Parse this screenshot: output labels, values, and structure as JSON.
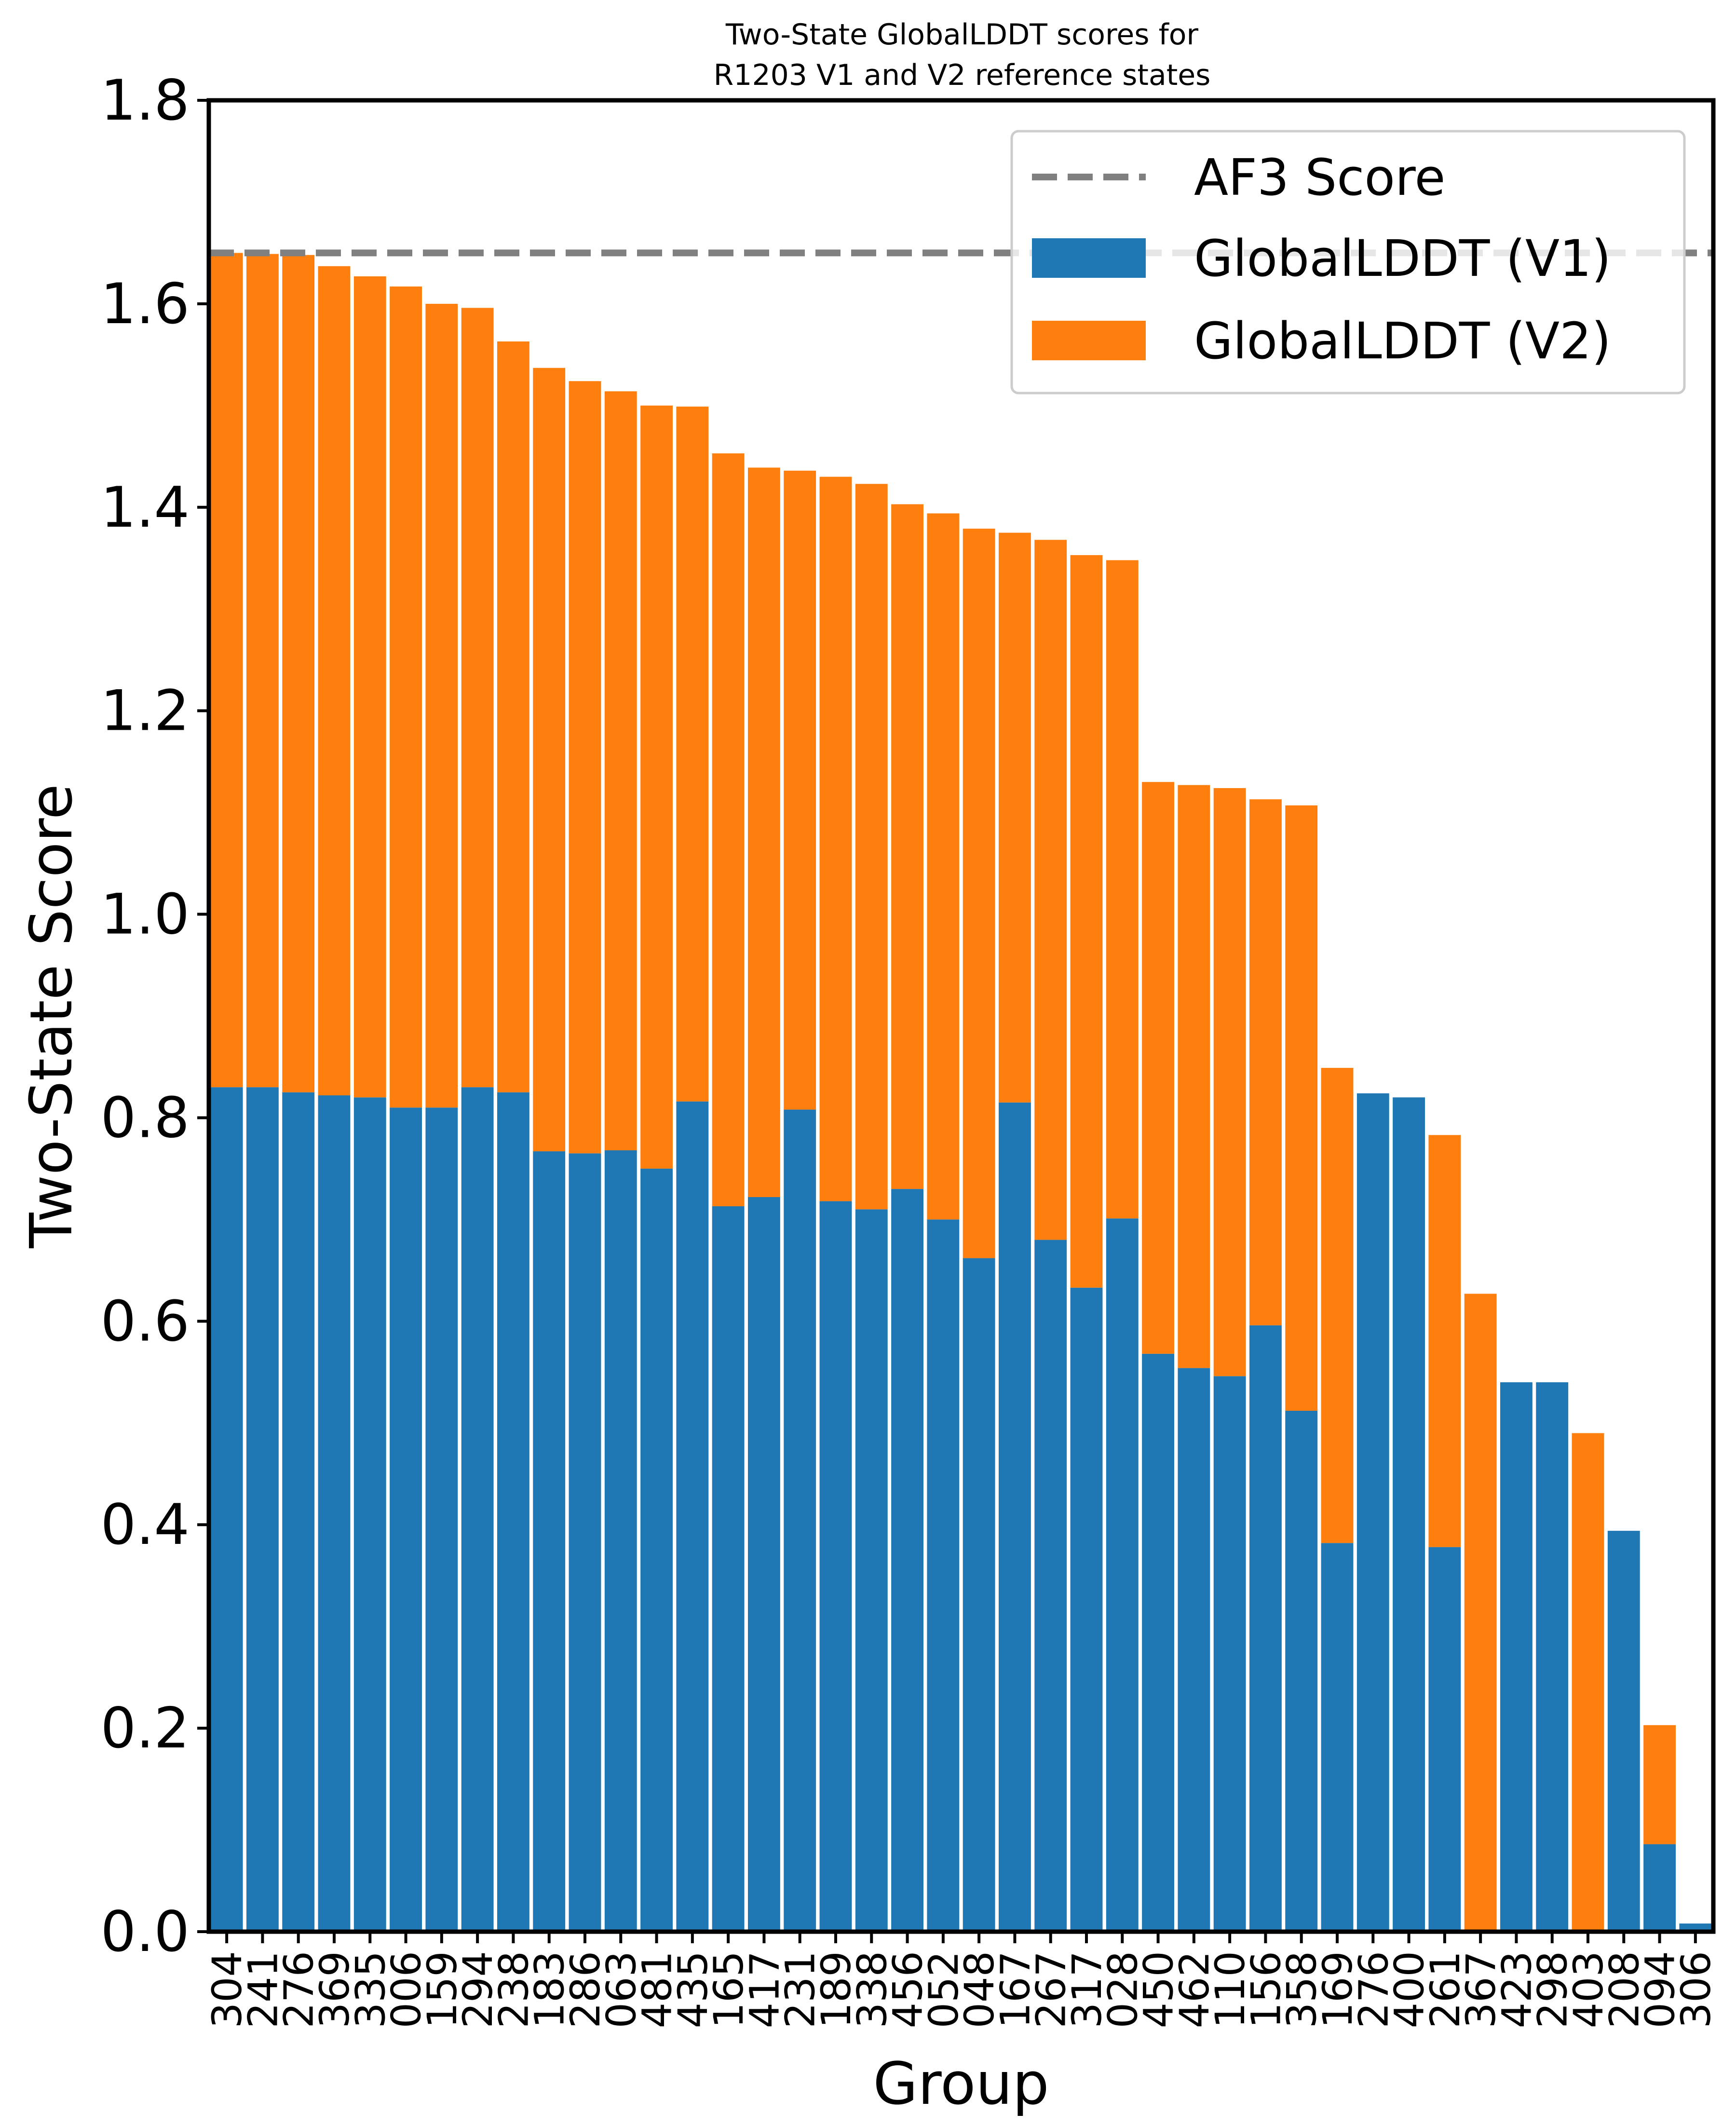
{
  "chart_data": {
    "type": "bar",
    "stacked": true,
    "title": [
      "Two-State GlobalLDDT scores for",
      "R1203 V1 and V2 reference states"
    ],
    "xlabel": "Group",
    "ylabel": "Two-State Score",
    "ylim": [
      0,
      1.8
    ],
    "yticks": [
      0.0,
      0.2,
      0.4,
      0.6,
      0.8,
      1.0,
      1.2,
      1.4,
      1.6,
      1.8
    ],
    "ytick_labels": [
      "0.0",
      "0.2",
      "0.4",
      "0.6",
      "0.8",
      "1.0",
      "1.2",
      "1.4",
      "1.6",
      "1.8"
    ],
    "grid": false,
    "legend_position": "top-right",
    "categories": [
      "304",
      "241",
      "276",
      "369",
      "335",
      "006",
      "159",
      "294",
      "238",
      "183",
      "286",
      "063",
      "481",
      "435",
      "165",
      "417",
      "231",
      "189",
      "338",
      "456",
      "052",
      "048",
      "167",
      "267",
      "317",
      "028",
      "450",
      "462",
      "110",
      "156",
      "358",
      "169",
      "276",
      "400",
      "261",
      "367",
      "423",
      "298",
      "403",
      "208",
      "094",
      "306"
    ],
    "series": [
      {
        "name": "GlobalLDDT (V1)",
        "color": "#1f77b4",
        "values": [
          0.83,
          0.83,
          0.825,
          0.822,
          0.82,
          0.81,
          0.81,
          0.83,
          0.825,
          0.767,
          0.765,
          0.768,
          0.75,
          0.816,
          0.713,
          0.722,
          0.808,
          0.718,
          0.71,
          0.73,
          0.7,
          0.662,
          0.815,
          0.68,
          0.633,
          0.701,
          0.568,
          0.554,
          0.546,
          0.596,
          0.512,
          0.382,
          0.824,
          0.82,
          0.378,
          0.0,
          0.54,
          0.54,
          0.0,
          0.394,
          0.086,
          0.008
        ]
      },
      {
        "name": "GlobalLDDT (V2)",
        "color": "#ff7f0e",
        "values": [
          0.82,
          0.819,
          0.823,
          0.815,
          0.807,
          0.807,
          0.79,
          0.766,
          0.738,
          0.77,
          0.759,
          0.746,
          0.75,
          0.683,
          0.74,
          0.717,
          0.628,
          0.712,
          0.713,
          0.673,
          0.694,
          0.717,
          0.56,
          0.688,
          0.72,
          0.647,
          0.562,
          0.573,
          0.578,
          0.517,
          0.595,
          0.467,
          0.0,
          0.0,
          0.405,
          0.627,
          0.0,
          0.0,
          0.49,
          0.0,
          0.117,
          0.0
        ]
      }
    ],
    "reference_line": {
      "name": "AF3 Score",
      "value": 1.65,
      "style": "dashed",
      "color": "#808080"
    }
  }
}
